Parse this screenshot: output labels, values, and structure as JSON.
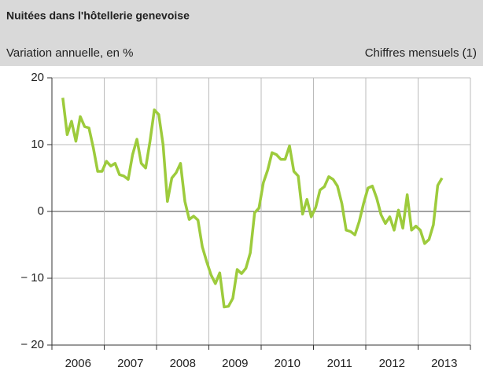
{
  "chart_data": {
    "type": "line",
    "title": "Nuitées dans l'hôtellerie genevoise",
    "subtitle": "Variation annuelle, en %",
    "note": "Chiffres mensuels (1)",
    "x": [
      2006.208,
      2006.292,
      2006.375,
      2006.458,
      2006.542,
      2006.625,
      2006.708,
      2006.792,
      2006.875,
      2006.958,
      2007.042,
      2007.125,
      2007.208,
      2007.292,
      2007.375,
      2007.458,
      2007.542,
      2007.625,
      2007.708,
      2007.792,
      2007.875,
      2007.958,
      2008.042,
      2008.125,
      2008.208,
      2008.292,
      2008.375,
      2008.458,
      2008.542,
      2008.625,
      2008.708,
      2008.792,
      2008.875,
      2008.958,
      2009.042,
      2009.125,
      2009.208,
      2009.292,
      2009.375,
      2009.458,
      2009.542,
      2009.625,
      2009.708,
      2009.792,
      2009.875,
      2009.958,
      2010.042,
      2010.125,
      2010.208,
      2010.292,
      2010.375,
      2010.458,
      2010.542,
      2010.625,
      2010.708,
      2010.792,
      2010.875,
      2010.958,
      2011.042,
      2011.125,
      2011.208,
      2011.292,
      2011.375,
      2011.458,
      2011.542,
      2011.625,
      2011.708,
      2011.792,
      2011.875,
      2011.958,
      2012.042,
      2012.125,
      2012.208,
      2012.292,
      2012.375,
      2012.458,
      2012.542,
      2012.625,
      2012.708,
      2012.792,
      2012.875,
      2012.958,
      2013.042,
      2013.125,
      2013.208,
      2013.292,
      2013.375,
      2013.458
    ],
    "series": [
      {
        "name": "Nuitées",
        "color": "#9dcb3c",
        "values": [
          17,
          11.5,
          13.5,
          10.5,
          14.2,
          12.7,
          12.5,
          9.5,
          6,
          6,
          7.5,
          6.8,
          7.2,
          5.5,
          5.3,
          4.8,
          8.5,
          10.8,
          7.2,
          6.5,
          10.5,
          15.2,
          14.5,
          10,
          1.5,
          5,
          5.8,
          7.2,
          1.5,
          -1.2,
          -0.7,
          -1.3,
          -5.3,
          -7.5,
          -9.5,
          -10.8,
          -9.2,
          -14.3,
          -14.2,
          -13,
          -8.7,
          -9.3,
          -8.5,
          -6.2,
          -0.2,
          0.5,
          4.3,
          6.2,
          8.8,
          8.5,
          7.8,
          7.8,
          9.8,
          6,
          5.3,
          -0.4,
          1.8,
          -0.8,
          0.6,
          3.2,
          3.7,
          5.2,
          4.8,
          3.8,
          1.2,
          -2.8,
          -3,
          -3.5,
          -1.5,
          1.2,
          3.5,
          3.8,
          2,
          -0.5,
          -1.8,
          -0.8,
          -2.8,
          0.2,
          -2.5,
          2.5,
          -2.8,
          -2.2,
          -2.8,
          -4.8,
          -4.2,
          -2,
          3.9,
          5
        ]
      }
    ],
    "xlim": [
      2006,
      2014
    ],
    "xticks": [
      2006,
      2007,
      2008,
      2009,
      2010,
      2011,
      2012,
      2013,
      2014
    ],
    "year_labels": [
      "2006",
      "2007",
      "2008",
      "2009",
      "2010",
      "2011",
      "2012",
      "2013"
    ],
    "ylim": [
      -20,
      20
    ],
    "yticks": [
      {
        "value": -20,
        "label": "− 20"
      },
      {
        "value": -10,
        "label": "− 10"
      },
      0,
      10,
      20
    ],
    "grid": true
  }
}
